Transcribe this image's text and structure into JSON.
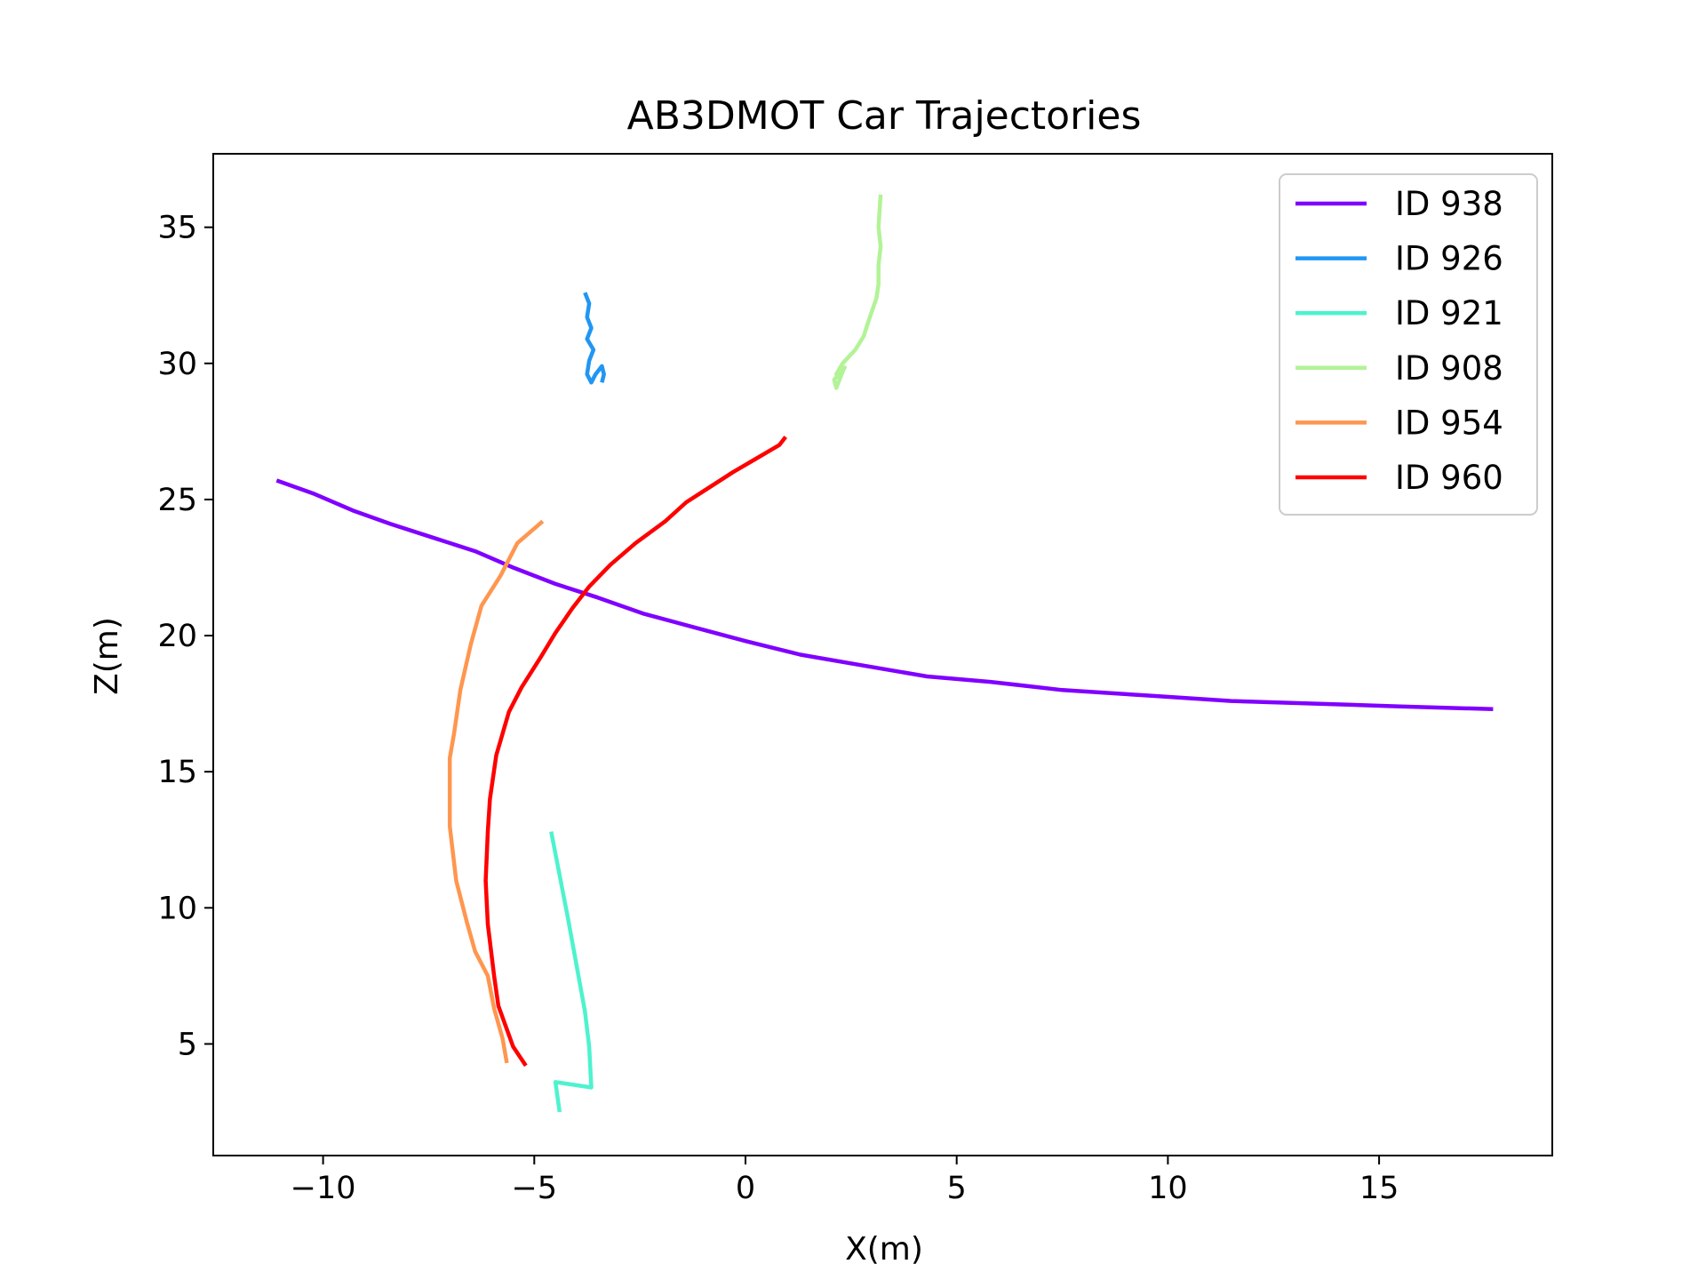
{
  "chart_data": {
    "type": "line",
    "title": "AB3DMOT Car Trajectories",
    "xlabel": "X(m)",
    "ylabel": "Z(m)",
    "xlim": [
      -12.6,
      19.1
    ],
    "ylim": [
      0.9,
      37.7
    ],
    "xticks": [
      -10,
      -5,
      0,
      5,
      10,
      15
    ],
    "yticks": [
      5,
      10,
      15,
      20,
      25,
      30,
      35
    ],
    "xtick_labels": [
      "−10",
      "−5",
      "0",
      "5",
      "10",
      "15"
    ],
    "ytick_labels": [
      "5",
      "10",
      "15",
      "20",
      "25",
      "30",
      "35"
    ],
    "grid": false,
    "legend_position": "upper-right",
    "series": [
      {
        "name": "ID 938",
        "color": "#8000ff",
        "points": [
          [
            -11.1,
            25.7
          ],
          [
            -10.2,
            25.2
          ],
          [
            -9.3,
            24.6
          ],
          [
            -8.4,
            24.1
          ],
          [
            -7.4,
            23.6
          ],
          [
            -6.4,
            23.1
          ],
          [
            -5.5,
            22.5
          ],
          [
            -4.5,
            21.9
          ],
          [
            -3.5,
            21.4
          ],
          [
            -2.4,
            20.8
          ],
          [
            -1.2,
            20.3
          ],
          [
            0,
            19.8
          ],
          [
            1.3,
            19.3
          ],
          [
            2.8,
            18.9
          ],
          [
            4.3,
            18.5
          ],
          [
            5.8,
            18.3
          ],
          [
            7.5,
            18.0
          ],
          [
            9.5,
            17.8
          ],
          [
            11.5,
            17.6
          ],
          [
            13.5,
            17.5
          ],
          [
            15.5,
            17.4
          ],
          [
            17.7,
            17.3
          ]
        ]
      },
      {
        "name": "ID 926",
        "color": "#2196f3",
        "points": [
          [
            -3.8,
            32.6
          ],
          [
            -3.7,
            32.2
          ],
          [
            -3.75,
            31.7
          ],
          [
            -3.65,
            31.3
          ],
          [
            -3.75,
            30.9
          ],
          [
            -3.6,
            30.5
          ],
          [
            -3.7,
            30.1
          ],
          [
            -3.75,
            29.6
          ],
          [
            -3.65,
            29.3
          ],
          [
            -3.55,
            29.6
          ],
          [
            -3.4,
            29.9
          ],
          [
            -3.35,
            29.6
          ],
          [
            -3.4,
            29.3
          ]
        ]
      },
      {
        "name": "ID 921",
        "color": "#4df3ce",
        "points": [
          [
            -4.6,
            12.8
          ],
          [
            -4.4,
            11.2
          ],
          [
            -4.2,
            9.6
          ],
          [
            -4.0,
            7.9
          ],
          [
            -3.8,
            6.2
          ],
          [
            -3.7,
            4.9
          ],
          [
            -3.65,
            3.4
          ],
          [
            -4.5,
            3.6
          ],
          [
            -4.4,
            2.5
          ]
        ]
      },
      {
        "name": "ID 908",
        "color": "#b2f396",
        "points": [
          [
            3.2,
            36.2
          ],
          [
            3.15,
            35.0
          ],
          [
            3.2,
            34.3
          ],
          [
            3.15,
            33.6
          ],
          [
            3.15,
            32.9
          ],
          [
            3.1,
            32.4
          ],
          [
            2.9,
            31.5
          ],
          [
            2.8,
            31.0
          ],
          [
            2.6,
            30.5
          ],
          [
            2.3,
            30.0
          ],
          [
            2.15,
            29.6
          ],
          [
            2.35,
            29.85
          ],
          [
            2.1,
            29.4
          ],
          [
            2.15,
            29.1
          ],
          [
            2.35,
            29.9
          ]
        ]
      },
      {
        "name": "ID 954",
        "color": "#ff964f",
        "points": [
          [
            -4.8,
            24.2
          ],
          [
            -5.4,
            23.4
          ],
          [
            -5.8,
            22.2
          ],
          [
            -6.25,
            21.1
          ],
          [
            -6.5,
            19.7
          ],
          [
            -6.75,
            18.0
          ],
          [
            -6.9,
            16.4
          ],
          [
            -7.0,
            15.5
          ],
          [
            -7.0,
            13.0
          ],
          [
            -6.85,
            11.0
          ],
          [
            -6.6,
            9.5
          ],
          [
            -6.4,
            8.4
          ],
          [
            -6.1,
            7.5
          ],
          [
            -5.95,
            6.3
          ],
          [
            -5.75,
            5.2
          ],
          [
            -5.65,
            4.3
          ]
        ]
      },
      {
        "name": "ID 960",
        "color": "#ff0000",
        "points": [
          [
            0.95,
            27.3
          ],
          [
            0.8,
            27.0
          ],
          [
            0.25,
            26.5
          ],
          [
            -0.3,
            26.0
          ],
          [
            -0.9,
            25.4
          ],
          [
            -1.4,
            24.9
          ],
          [
            -1.9,
            24.2
          ],
          [
            -2.6,
            23.4
          ],
          [
            -3.2,
            22.6
          ],
          [
            -3.7,
            21.8
          ],
          [
            -4.1,
            21.0
          ],
          [
            -4.5,
            20.1
          ],
          [
            -4.85,
            19.2
          ],
          [
            -5.3,
            18.1
          ],
          [
            -5.6,
            17.2
          ],
          [
            -5.9,
            15.6
          ],
          [
            -6.05,
            14.0
          ],
          [
            -6.1,
            12.8
          ],
          [
            -6.15,
            11.0
          ],
          [
            -6.1,
            9.4
          ],
          [
            -5.95,
            7.5
          ],
          [
            -5.85,
            6.4
          ],
          [
            -5.5,
            4.9
          ],
          [
            -5.2,
            4.2
          ]
        ]
      }
    ]
  }
}
